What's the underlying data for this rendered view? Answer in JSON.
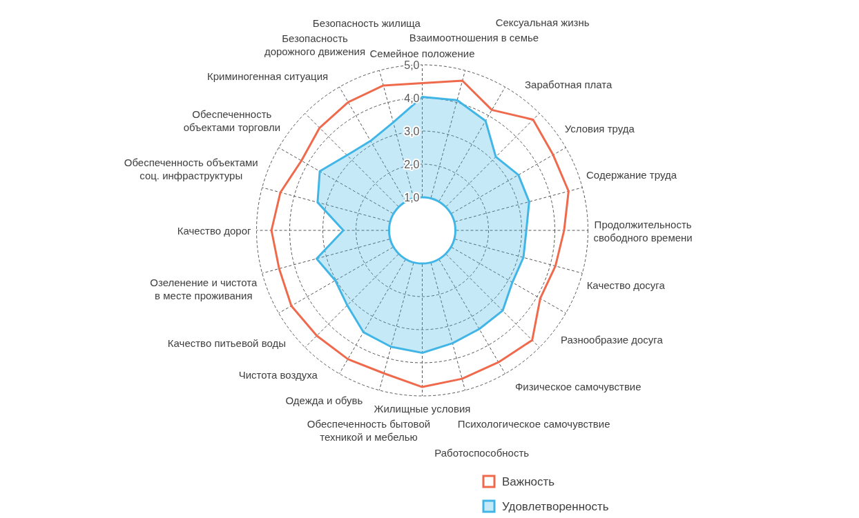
{
  "chart_data": {
    "type": "radar",
    "categories": [
      "Семейное положение",
      "Взаимоотношения в семье",
      "Сексуальная жизнь",
      "Заработная плата",
      "Условия труда",
      "Содержание труда",
      "Продолжительность\nсвободного времени",
      "Качество досуга",
      "Разнообразие досуга",
      "Физическое самочувствие",
      "Психологическое самочувствие",
      "Работоспособность",
      "Жилищные условия",
      "Обеспеченность бытовой\nтехникой и мебелью",
      "Одежда и обувь",
      "Чистота воздуха",
      "Качество питьевой воды",
      "Озеленение и чистота\nв месте проживания",
      "Качество дорог",
      "Обеспеченность объектами\nсоц. инфраструктуры",
      "Обеспеченность\nобъектами торговли",
      "Криминогенная ситуация",
      "Безопасность\nдорожного движения",
      "Безопасность жилища"
    ],
    "series": [
      {
        "name": "Удовлетворенность",
        "type": "area",
        "color": "#41b6e6",
        "values": [
          4.03,
          4.07,
          3.82,
          3.14,
          3.35,
          3.34,
          3.14,
          3.16,
          3.14,
          3.43,
          3.44,
          3.53,
          3.7,
          3.64,
          3.55,
          3.2,
          3.03,
          3.3,
          2.38,
          3.27,
          3.57,
          3.21,
          3.12,
          3.38
        ]
      },
      {
        "name": "Важность",
        "color": "#ef6a4c",
        "values": [
          4.45,
          4.68,
          4.2,
          4.73,
          4.56,
          4.57,
          4.28,
          4.16,
          4.11,
          4.69,
          4.6,
          4.64,
          4.73,
          4.47,
          4.49,
          4.5,
          4.56,
          4.47,
          4.55,
          4.43,
          4.21,
          4.38,
          4.47,
          4.53
        ]
      }
    ],
    "ylim": [
      0,
      5
    ],
    "yticks": [
      {
        "value": 1,
        "label": "1,0"
      },
      {
        "value": 2,
        "label": "2,0"
      },
      {
        "value": 3,
        "label": "3,0"
      },
      {
        "value": 4,
        "label": "4,0"
      },
      {
        "value": 5,
        "label": "5,0"
      }
    ],
    "grid": true,
    "legend": "bottom"
  }
}
